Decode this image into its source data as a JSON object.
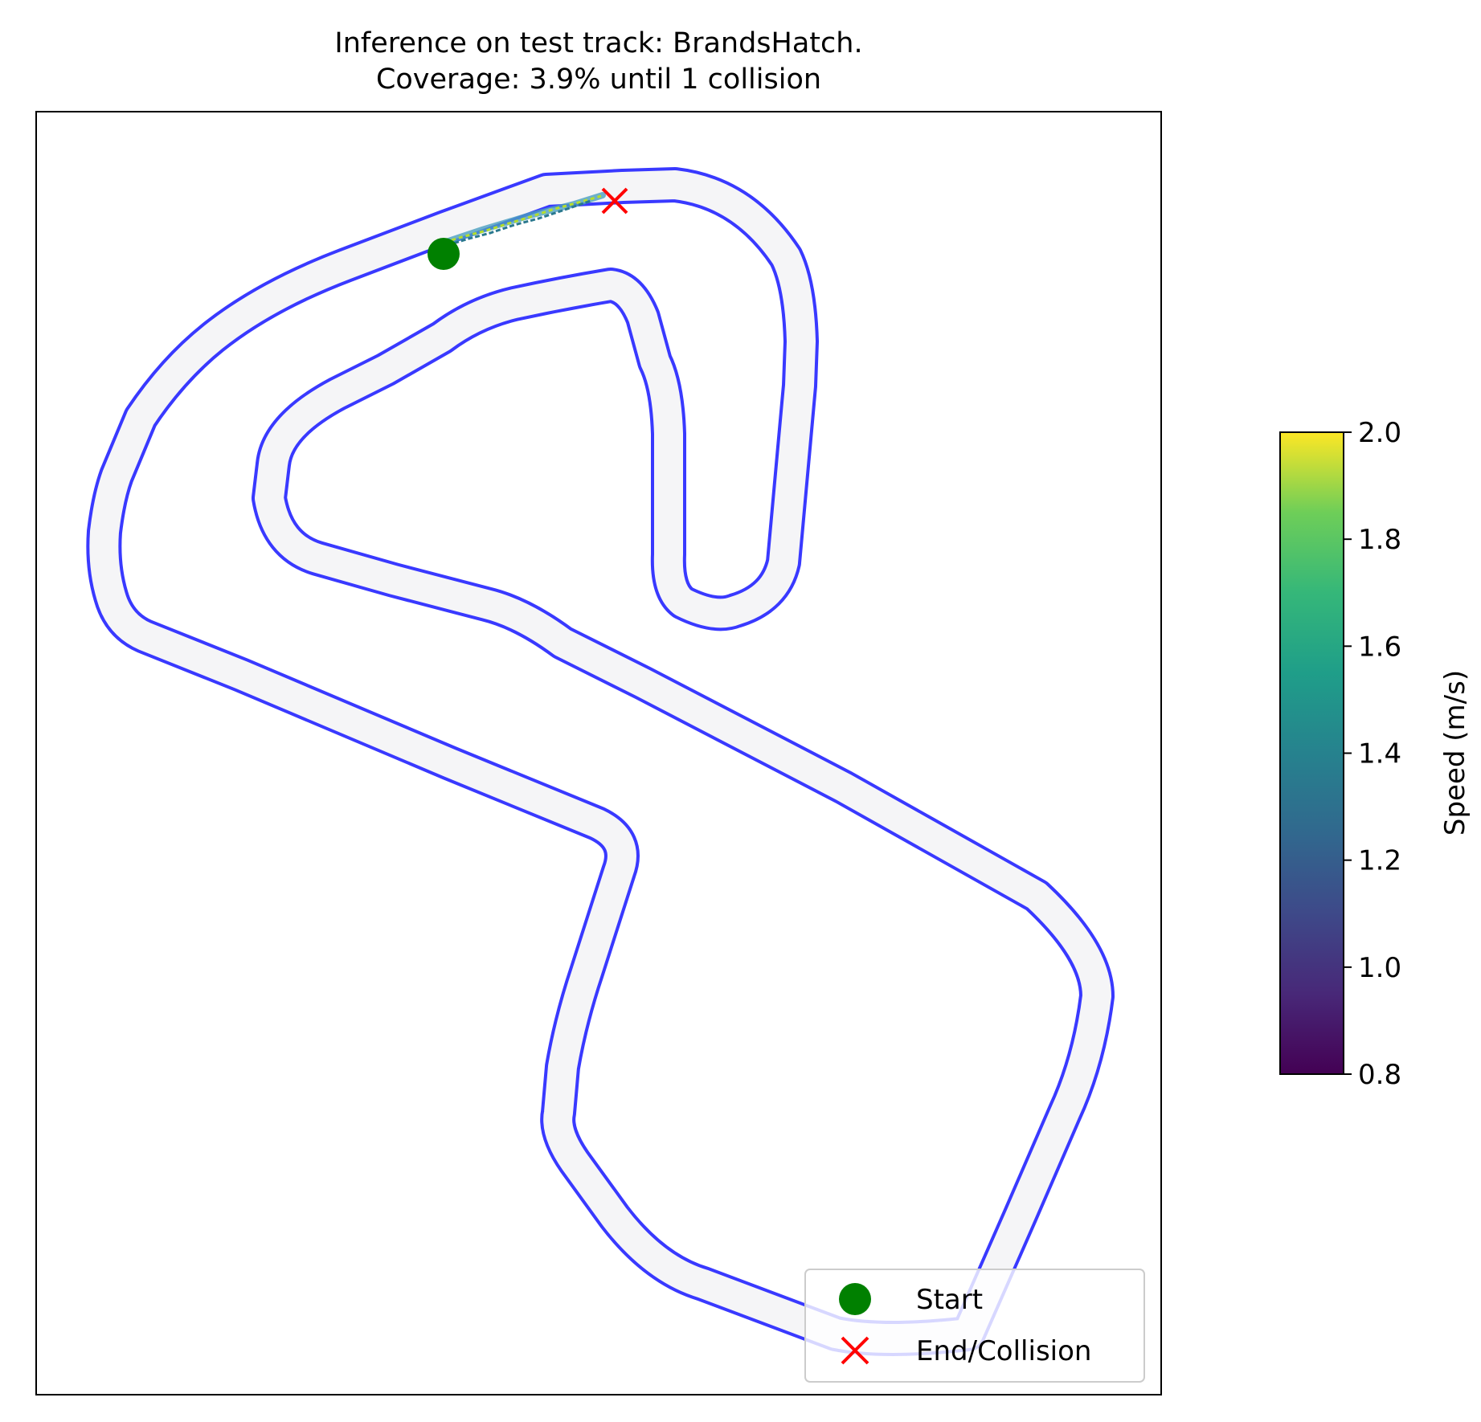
{
  "title_line1": "Inference on test track: BrandsHatch.",
  "title_line2": "Coverage: 3.9% until 1 collision",
  "chart_data": {
    "type": "line",
    "title": "Inference on test track: BrandsHatch.\nCoverage: 3.9% until 1 collision",
    "track": "BrandsHatch",
    "coverage_percent": 3.9,
    "collisions": 1,
    "axes": {
      "ticks_visible": false,
      "grid": false
    },
    "track_color": "#3333ff",
    "track_fill_color": "#f5f5f7",
    "colorbar": {
      "label": "Speed (m/s)",
      "colormap": "viridis",
      "range": [
        0.8,
        2.0
      ],
      "ticks": [
        "0.8",
        "1.0",
        "1.2",
        "1.4",
        "1.6",
        "1.8",
        "2.0"
      ]
    },
    "markers": [
      {
        "name": "Start",
        "shape": "circle",
        "color": "#008000"
      },
      {
        "name": "End/Collision",
        "shape": "x",
        "color": "#ff0000"
      }
    ],
    "legend": {
      "placement": "lower-right",
      "entries": [
        "Start",
        "End/Collision"
      ]
    }
  }
}
